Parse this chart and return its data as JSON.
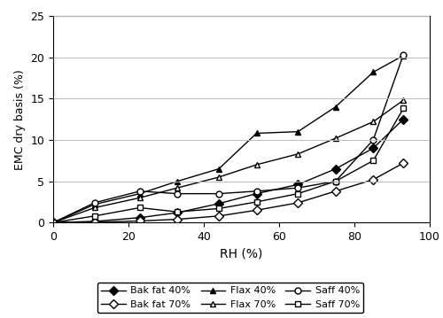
{
  "title": "",
  "xlabel": "RH (%)",
  "ylabel": "EMC dry basis (%)",
  "xlim": [
    0,
    100
  ],
  "ylim": [
    0,
    25
  ],
  "xticks": [
    0,
    20,
    40,
    60,
    80,
    100
  ],
  "yticks": [
    0,
    5,
    10,
    15,
    20,
    25
  ],
  "series": [
    {
      "label": "Bak fat 40%",
      "marker": "D",
      "fillstyle": "full",
      "color": "#000000",
      "x": [
        0,
        11,
        23,
        33,
        44,
        54,
        65,
        75,
        85,
        93
      ],
      "y": [
        0,
        0.15,
        0.6,
        1.2,
        2.3,
        3.5,
        4.6,
        6.5,
        9.0,
        12.5
      ]
    },
    {
      "label": "Bak fat 70%",
      "marker": "D",
      "fillstyle": "none",
      "color": "#000000",
      "x": [
        0,
        11,
        23,
        33,
        44,
        54,
        65,
        75,
        85,
        93
      ],
      "y": [
        0,
        0.05,
        0.2,
        0.4,
        0.8,
        1.5,
        2.4,
        3.8,
        5.2,
        7.2
      ]
    },
    {
      "label": "Flax 40%",
      "marker": "^",
      "fillstyle": "full",
      "color": "#000000",
      "x": [
        0,
        11,
        23,
        33,
        44,
        54,
        65,
        75,
        85,
        93
      ],
      "y": [
        0,
        2.2,
        3.5,
        5.0,
        6.5,
        10.8,
        11.0,
        14.0,
        18.2,
        20.2
      ]
    },
    {
      "label": "Flax 70%",
      "marker": "^",
      "fillstyle": "none",
      "color": "#000000",
      "x": [
        0,
        11,
        23,
        33,
        44,
        54,
        65,
        75,
        85,
        93
      ],
      "y": [
        0,
        1.8,
        3.0,
        4.2,
        5.5,
        7.0,
        8.3,
        10.2,
        12.2,
        14.8
      ]
    },
    {
      "label": "Saff 40%",
      "marker": "o",
      "fillstyle": "none",
      "color": "#000000",
      "x": [
        0,
        11,
        23,
        33,
        44,
        54,
        65,
        75,
        85,
        93
      ],
      "y": [
        0,
        2.4,
        3.8,
        3.5,
        3.5,
        3.8,
        4.2,
        5.0,
        10.0,
        20.3
      ]
    },
    {
      "label": "Saff 70%",
      "marker": "s",
      "fillstyle": "none",
      "color": "#000000",
      "x": [
        0,
        11,
        23,
        33,
        44,
        54,
        65,
        75,
        85,
        93
      ],
      "y": [
        0,
        0.8,
        1.8,
        1.3,
        1.7,
        2.5,
        3.5,
        5.0,
        7.5,
        13.8
      ]
    }
  ],
  "legend_order": [
    "Bak fat 40%",
    "Bak fat 70%",
    "Flax 40%",
    "Flax 70%",
    "Saff 40%",
    "Saff 70%"
  ],
  "legend_ncol": 3,
  "background_color": "#ffffff",
  "grid_color": "#bbbbbb"
}
